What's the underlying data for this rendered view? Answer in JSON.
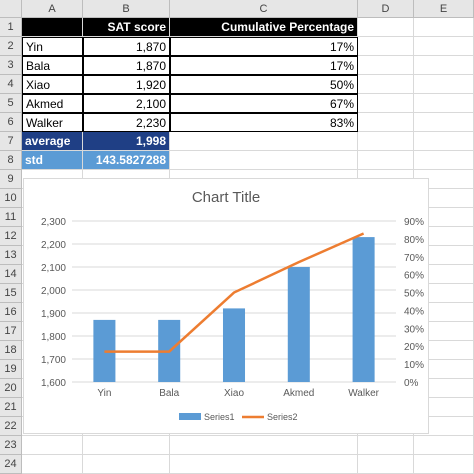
{
  "columns": [
    "A",
    "B",
    "C",
    "D",
    "E"
  ],
  "rows": [
    "1",
    "2",
    "3",
    "4",
    "5",
    "6",
    "7",
    "8",
    "9",
    "10",
    "11",
    "12",
    "13",
    "14",
    "15",
    "16",
    "17",
    "18",
    "19",
    "20",
    "21",
    "22",
    "23",
    "24"
  ],
  "table": {
    "header": [
      "",
      "SAT score",
      "Cumulative Percentage"
    ],
    "data": [
      {
        "name": "Yin",
        "sat": "1,870",
        "pct": "17%"
      },
      {
        "name": "Bala",
        "sat": "1,870",
        "pct": "17%"
      },
      {
        "name": "Xiao",
        "sat": "1,920",
        "pct": "50%"
      },
      {
        "name": "Akmed",
        "sat": "2,100",
        "pct": "67%"
      },
      {
        "name": "Walker",
        "sat": "2,230",
        "pct": "83%"
      }
    ],
    "average": {
      "label": "average",
      "value": "1,998"
    },
    "std": {
      "label": "std",
      "value": "143.5827288"
    }
  },
  "colors": {
    "bar": "#5b9bd5",
    "line": "#ed7d31",
    "avg_fill": "#1f3f85",
    "std_fill": "#5b9bd5"
  },
  "chart_data": {
    "type": "bar",
    "title": "Chart Title",
    "categories": [
      "Yin",
      "Bala",
      "Xiao",
      "Akmed",
      "Walker"
    ],
    "series": [
      {
        "name": "Series1",
        "type": "bar",
        "axis": "primary",
        "values": [
          1870,
          1870,
          1920,
          2100,
          2230
        ]
      },
      {
        "name": "Series2",
        "type": "line",
        "axis": "secondary",
        "values": [
          0.17,
          0.17,
          0.5,
          0.67,
          0.83
        ]
      }
    ],
    "y_ticks": [
      "1,600",
      "1,700",
      "1,800",
      "1,900",
      "2,000",
      "2,100",
      "2,200",
      "2,300"
    ],
    "y2_ticks": [
      "0%",
      "10%",
      "20%",
      "30%",
      "40%",
      "50%",
      "60%",
      "70%",
      "80%",
      "90%"
    ],
    "ylim": [
      1600,
      2300
    ],
    "y2lim": [
      0,
      0.9
    ],
    "grid": true,
    "legend": "bottom"
  }
}
